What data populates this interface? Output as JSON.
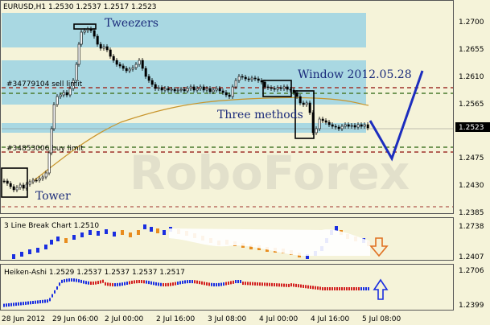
{
  "main": {
    "title": "EURUSD,H1  1.2530 1.2537 1.2517 1.2523",
    "order_sell": "#34779104 sell limit",
    "order_buy": "#34853006 buy limit",
    "ann_tweezers": "Tweezers",
    "ann_window": "Window 2012.05.28",
    "ann_three": "Three methods",
    "ann_tower": "Tower",
    "price_axis": [
      "1.2700",
      "1.2655",
      "1.2610",
      "1.2565",
      "1.2475",
      "1.2430",
      "1.2385"
    ],
    "current_price": "1.2523",
    "watermark": "RoboForex"
  },
  "sub1": {
    "title": "3 Line Break Chart 1.2510",
    "axis_top": "1.2738",
    "axis_bottom": "1.2407",
    "signal": "down-arrow-icon"
  },
  "sub2": {
    "title": "Heiken-Ashi 1.2529 1.2537 1.2537 1.2537 1.2517",
    "axis_top": "1.2706",
    "axis_bottom": "1.2399",
    "signal": "up-arrow-icon"
  },
  "time_axis": [
    "28 Jun 2012",
    "29 Jun 06:00",
    "2 Jul 00:00",
    "2 Jul 16:00",
    "3 Jul 08:00",
    "4 Jul 00:00",
    "4 Jul 16:00",
    "5 Jul 08:00"
  ],
  "colors": {
    "background": "#f5f3d9",
    "zone": "#a9d8e2",
    "candle": "#000000",
    "ma": "#c8952c",
    "forecast": "#1c2dbe",
    "level_red": "#a0322a",
    "level_green": "#4a7a2e",
    "lb_blue": "#1a2ee0",
    "lb_orange": "#e88c1e",
    "ha_blue": "#1a2ee0",
    "ha_red": "#d21f1f"
  }
}
